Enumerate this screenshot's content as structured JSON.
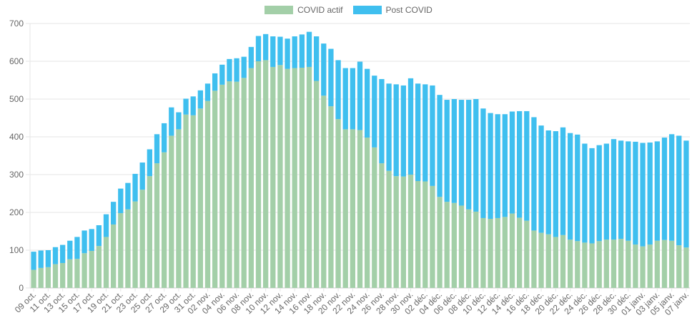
{
  "chart_data": {
    "type": "bar",
    "stacked": true,
    "ylim": [
      0,
      700
    ],
    "yticks": [
      0,
      100,
      200,
      300,
      400,
      500,
      600,
      700
    ],
    "grid": true,
    "legend_position": "top-center",
    "series": [
      {
        "name": "COVID actif",
        "color": "#a3cfa8",
        "values": [
          48,
          53,
          55,
          63,
          66,
          76,
          77,
          92,
          98,
          111,
          135,
          168,
          198,
          208,
          229,
          260,
          296,
          330,
          359,
          403,
          420,
          459,
          457,
          475,
          495,
          522,
          538,
          547,
          546,
          556,
          582,
          600,
          603,
          585,
          590,
          580,
          582,
          583,
          585,
          548,
          509,
          481,
          447,
          420,
          420,
          418,
          398,
          372,
          330,
          310,
          296,
          295,
          300,
          283,
          282,
          270,
          241,
          228,
          225,
          218,
          208,
          202,
          185,
          183,
          185,
          188,
          197,
          186,
          178,
          152,
          146,
          142,
          135,
          140,
          128,
          124,
          120,
          118,
          124,
          128,
          128,
          130,
          125,
          115,
          110,
          115,
          125,
          127,
          125,
          113,
          107
        ]
      },
      {
        "name": "Post COVID",
        "color": "#3fbfef",
        "values": [
          48,
          46,
          45,
          45,
          48,
          49,
          58,
          60,
          58,
          55,
          60,
          60,
          65,
          70,
          73,
          72,
          71,
          77,
          77,
          75,
          45,
          42,
          50,
          48,
          46,
          46,
          53,
          59,
          62,
          56,
          56,
          67,
          69,
          81,
          75,
          80,
          84,
          88,
          93,
          118,
          138,
          152,
          156,
          162,
          162,
          181,
          182,
          190,
          223,
          231,
          243,
          241,
          255,
          258,
          257,
          266,
          270,
          270,
          275,
          280,
          290,
          298,
          290,
          280,
          275,
          272,
          270,
          282,
          290,
          300,
          284,
          275,
          280,
          285,
          282,
          282,
          262,
          252,
          254,
          254,
          266,
          260,
          263,
          272,
          274,
          270,
          263,
          271,
          282,
          290,
          283
        ]
      }
    ],
    "x_tick_labels": [
      "09 oct.",
      "11 oct.",
      "13 oct.",
      "15 oct.",
      "17 oct.",
      "19 oct.",
      "21 oct.",
      "23 oct.",
      "25 oct.",
      "27 oct.",
      "29 oct.",
      "31 oct.",
      "02 nov.",
      "04 nov.",
      "06 nov.",
      "08 nov.",
      "10 nov.",
      "12 nov.",
      "14 nov.",
      "16 nov.",
      "18 nov.",
      "20 nov.",
      "22 nov.",
      "24 nov.",
      "26 nov.",
      "28 nov.",
      "30 nov.",
      "02 déc.",
      "04 déc.",
      "06 déc.",
      "08 déc.",
      "10 déc.",
      "12 déc.",
      "14 déc.",
      "16 déc.",
      "18 déc.",
      "20 déc.",
      "22 déc.",
      "24 déc.",
      "26 déc.",
      "28 déc.",
      "30 déc.",
      "01 janv.",
      "03 janv.",
      "05 janv.",
      "07 janv."
    ],
    "x_tick_every": 2
  }
}
